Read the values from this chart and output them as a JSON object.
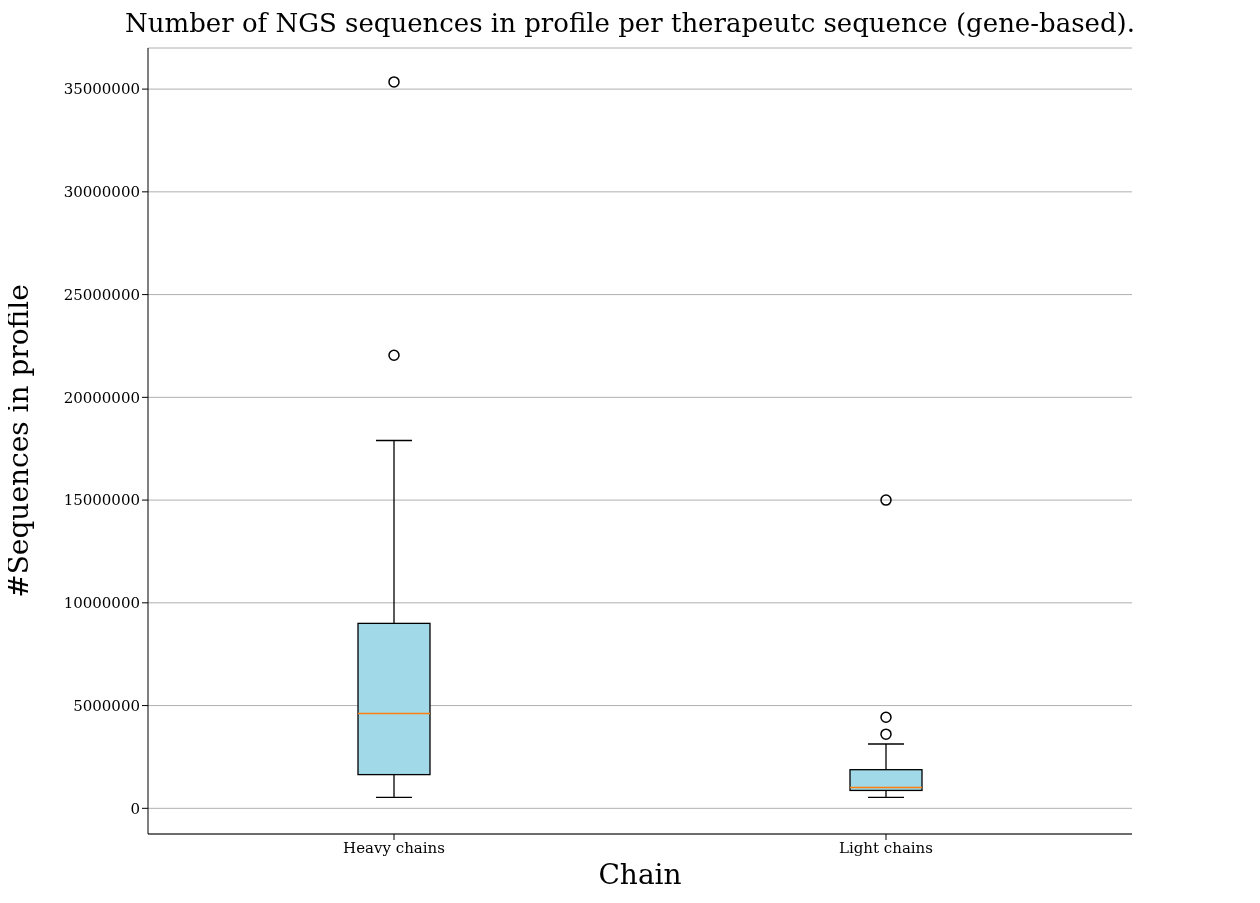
{
  "chart_data": {
    "type": "box",
    "title": "Number of NGS sequences in profile per therapeutc sequence (gene-based).",
    "xlabel": "Chain",
    "ylabel": "#Sequences in profile",
    "categories": [
      "Heavy chains",
      "Light chains"
    ],
    "color": "#a2d9e8",
    "boxes": [
      {
        "low": 530000,
        "q1": 1640000,
        "median": 4620000,
        "q3": 9000000,
        "high": 17900000,
        "outliers": [
          22050000,
          35350000
        ]
      },
      {
        "low": 530000,
        "q1": 870000,
        "median": 1010000,
        "q3": 1880000,
        "high": 3130000,
        "outliers": [
          3610000,
          4430000,
          15000000
        ]
      }
    ],
    "ylim": [
      -1250000,
      37000000
    ],
    "yticks": [
      0,
      5000000,
      10000000,
      15000000,
      20000000,
      25000000,
      30000000,
      35000000
    ],
    "grid": "y",
    "marker": "circle"
  }
}
